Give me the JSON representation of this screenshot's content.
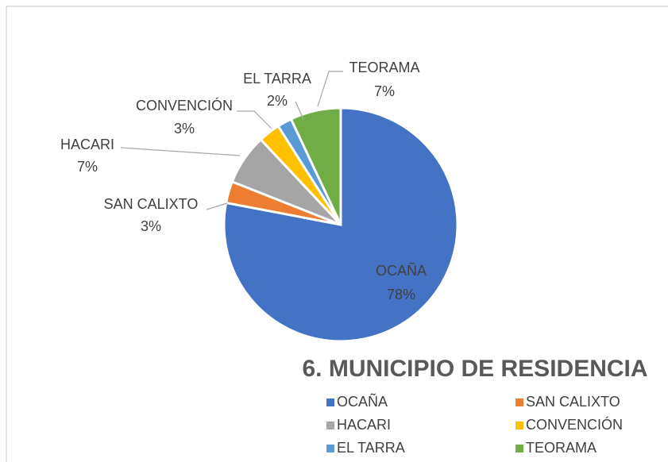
{
  "chart_data": {
    "type": "pie",
    "title": "6. MUNICIPIO DE RESIDENCIA",
    "categories": [
      "OCAÑA",
      "SAN CALIXTO",
      "HACARI",
      "CONVENCIÓN",
      "EL TARRA",
      "TEORAMA"
    ],
    "values": [
      78,
      3,
      7,
      3,
      2,
      7
    ],
    "value_labels": [
      "78%",
      "3%",
      "7%",
      "3%",
      "2%",
      "7%"
    ],
    "colors": [
      "#4472c4",
      "#ed7d31",
      "#a5a5a5",
      "#ffc000",
      "#5b9bd5",
      "#70ad47"
    ],
    "legend": "bottom"
  }
}
